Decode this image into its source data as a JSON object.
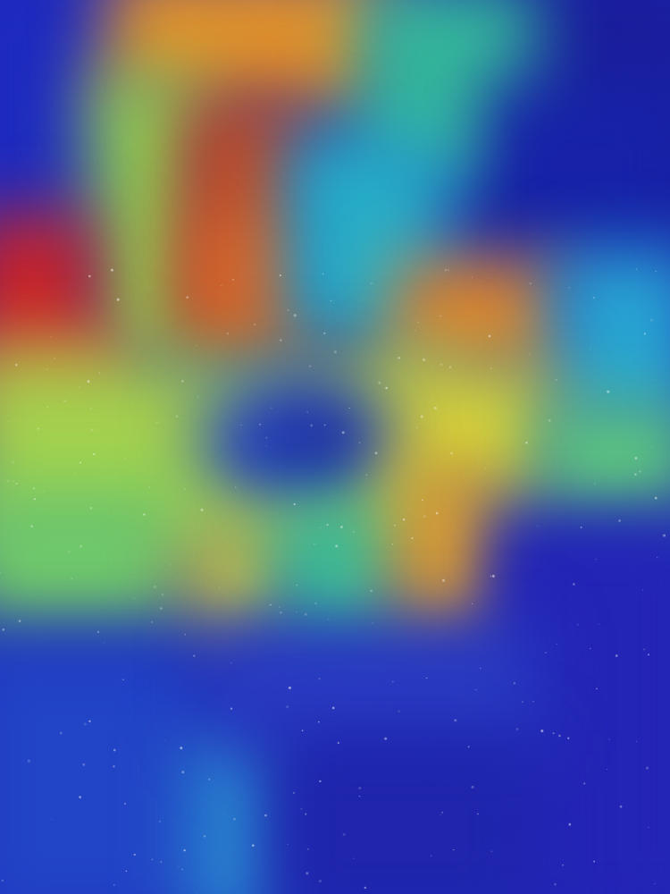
{
  "image": {
    "palette": {
      "deep_blue": "#1b22b0",
      "navy": "#141d8f",
      "blue": "#2a63d8",
      "cyan": "#22a6cf",
      "teal": "#2fbfa6",
      "green": "#6fcf63",
      "yellow_green": "#b9d94a",
      "yellow": "#e2cf3a",
      "orange": "#e58e2a",
      "dark_orange": "#d86a23",
      "red": "#c8282a",
      "dark_red": "#b63a22"
    },
    "speckles": "white-dust-overlay"
  }
}
